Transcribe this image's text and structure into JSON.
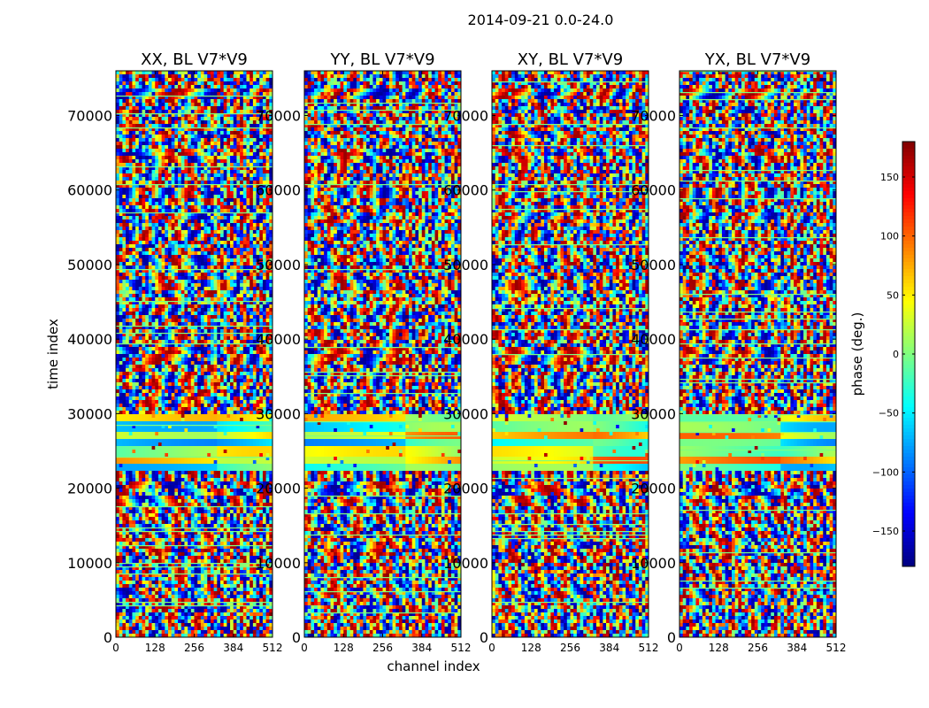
{
  "chart_data": {
    "type": "heatmap",
    "title": "2014-09-21 0.0-24.0",
    "xlabel": "channel index",
    "ylabel": "time index",
    "xlim": [
      0,
      512
    ],
    "ylim": [
      0,
      76000
    ],
    "xticks": [
      0,
      128,
      256,
      384,
      512
    ],
    "xtick_labels": [
      "0",
      "128",
      "256",
      "384",
      "512"
    ],
    "yticks": [
      0,
      10000,
      20000,
      30000,
      40000,
      50000,
      60000,
      70000
    ],
    "ytick_labels": [
      "0",
      "10000",
      "20000",
      "30000",
      "40000",
      "50000",
      "60000",
      "70000"
    ],
    "panels": [
      {
        "title": "XX, BL V7*V9"
      },
      {
        "title": "YY, BL V7*V9"
      },
      {
        "title": "XY, BL V7*V9"
      },
      {
        "title": "YX, BL V7*V9"
      }
    ],
    "colorbar": {
      "label": "phase (deg.)",
      "range": [
        -180,
        180
      ],
      "ticks": [
        -150,
        -100,
        -50,
        0,
        50,
        100,
        150
      ],
      "tick_labels": [
        "−150",
        "−100",
        "−50",
        "0",
        "50",
        "100",
        "150"
      ],
      "colormap": "jet"
    }
  }
}
